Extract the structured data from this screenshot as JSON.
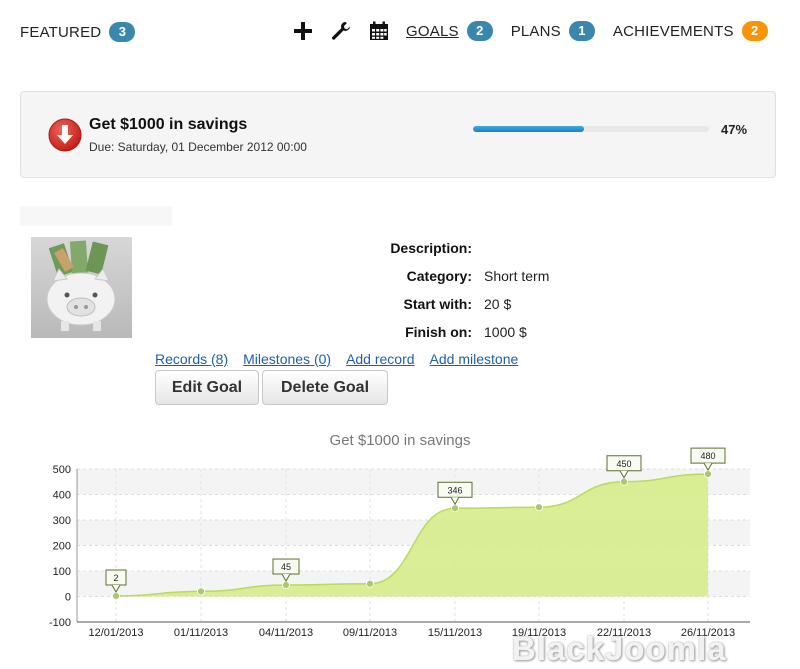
{
  "nav": {
    "featured": {
      "label": "FEATURED",
      "count": "3"
    },
    "tools": [
      "plus-icon",
      "wrench-icon",
      "calendar-icon"
    ],
    "goals": {
      "label": "GOALS",
      "count": "2"
    },
    "plans": {
      "label": "PLANS",
      "count": "1"
    },
    "achievements": {
      "label": "ACHIEVEMENTS",
      "count": "2"
    }
  },
  "goal": {
    "title": "Get $1000 in savings",
    "due": "Due: Saturday, 01 December 2012 00:00",
    "progress_percent": 47,
    "progress_label": "47%"
  },
  "details": {
    "description_label": "Description:",
    "description_value": "",
    "category_label": "Category:",
    "category_value": "Short term",
    "start_label": "Start with:",
    "start_value": "20 $",
    "finish_label": "Finish on:",
    "finish_value": "1000 $"
  },
  "links": {
    "records": "Records (8)",
    "milestones": "Milestones (0)",
    "add_record": "Add record",
    "add_milestone": "Add milestone"
  },
  "buttons": {
    "edit": "Edit Goal",
    "delete": "Delete Goal"
  },
  "watermark": "BlackJoomla",
  "chart_data": {
    "type": "area",
    "title": "Get $1000 in savings",
    "categories": [
      "12/01/2013",
      "01/11/2013",
      "04/11/2013",
      "09/11/2013",
      "15/11/2013",
      "19/11/2013",
      "22/11/2013",
      "26/11/2013"
    ],
    "values": [
      2,
      20,
      45,
      50,
      346,
      350,
      450,
      480
    ],
    "data_labels": [
      "2",
      "",
      "45",
      "",
      "346",
      "",
      "450",
      "480"
    ],
    "y_ticks": [
      "-100",
      "0",
      "100",
      "200",
      "300",
      "400",
      "500"
    ],
    "ylim": [
      -100,
      500
    ],
    "grid": true,
    "fill_color": "#d6ec8a",
    "line_color": "#b9d95f",
    "point_color": "#a9c96a"
  }
}
